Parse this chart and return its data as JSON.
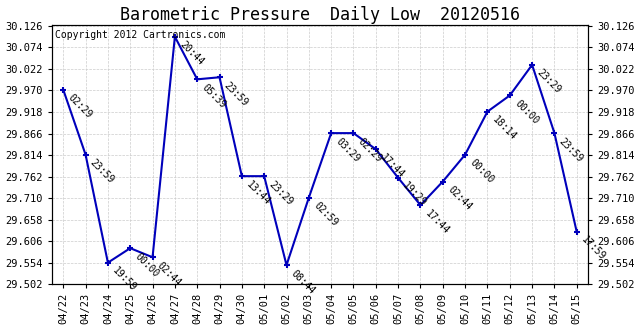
{
  "title": "Barometric Pressure  Daily Low  20120516",
  "copyright": "Copyright 2012 Cartronics.com",
  "x_labels": [
    "04/22",
    "04/23",
    "04/24",
    "04/25",
    "04/26",
    "04/27",
    "04/28",
    "04/29",
    "04/30",
    "05/01",
    "05/02",
    "05/03",
    "05/04",
    "05/05",
    "05/06",
    "05/07",
    "05/08",
    "05/09",
    "05/10",
    "05/11",
    "05/12",
    "05/13",
    "05/14",
    "05/15"
  ],
  "y_values": [
    29.972,
    29.815,
    29.554,
    29.589,
    29.567,
    30.1,
    29.997,
    30.002,
    29.763,
    29.763,
    29.548,
    29.711,
    29.867,
    29.867,
    29.828,
    29.759,
    29.693,
    29.75,
    29.815,
    29.919,
    29.958,
    30.032,
    29.867,
    29.628
  ],
  "time_labels": [
    "02:29",
    "23:59",
    "19:59",
    "00:00",
    "02:44",
    "20:44",
    "05:39",
    "23:59",
    "13:44",
    "23:29",
    "08:44",
    "02:59",
    "03:29",
    "02:29",
    "17:44",
    "19:29",
    "17:44",
    "02:44",
    "00:00",
    "18:14",
    "00:00",
    "23:29",
    "23:59",
    "17:59"
  ],
  "line_color": "#0000bb",
  "marker_color": "#0000bb",
  "background_color": "#ffffff",
  "grid_color": "#cccccc",
  "title_fontsize": 12,
  "copyright_fontsize": 7,
  "label_fontsize": 7,
  "tick_fontsize": 7.5,
  "ylim_min": 29.502,
  "ylim_max": 30.128,
  "ytick_interval": 0.052
}
